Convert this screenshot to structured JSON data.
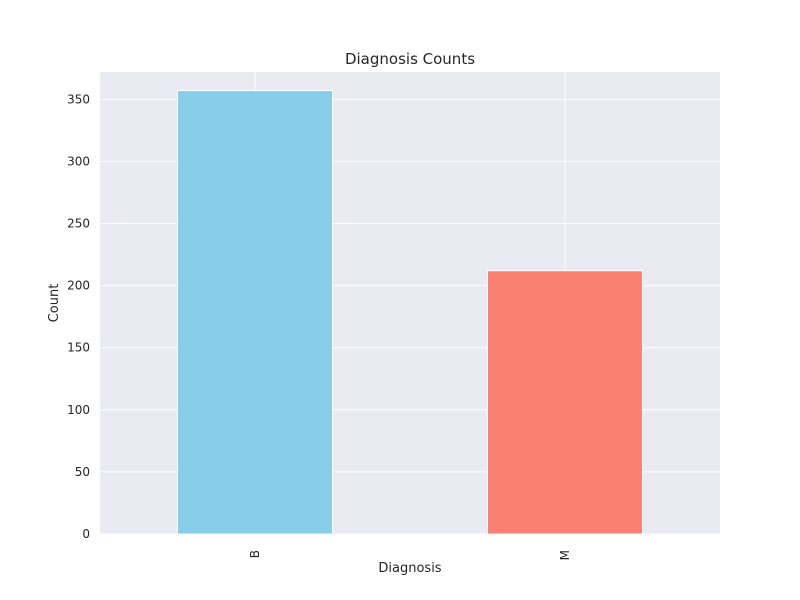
{
  "chart_data": {
    "type": "bar",
    "title": "Diagnosis Counts",
    "xlabel": "Diagnosis",
    "ylabel": "Count",
    "categories": [
      "B",
      "M"
    ],
    "values": [
      357,
      212
    ],
    "colors": [
      "#87ceeb",
      "#fa8072"
    ],
    "ylim": [
      0,
      372
    ],
    "yticks": [
      0,
      50,
      100,
      150,
      200,
      250,
      300,
      350
    ],
    "ytick_labels": [
      "0",
      "50",
      "100",
      "150",
      "200",
      "250",
      "300",
      "350"
    ],
    "grid": true,
    "background": "#eaeaf2"
  }
}
